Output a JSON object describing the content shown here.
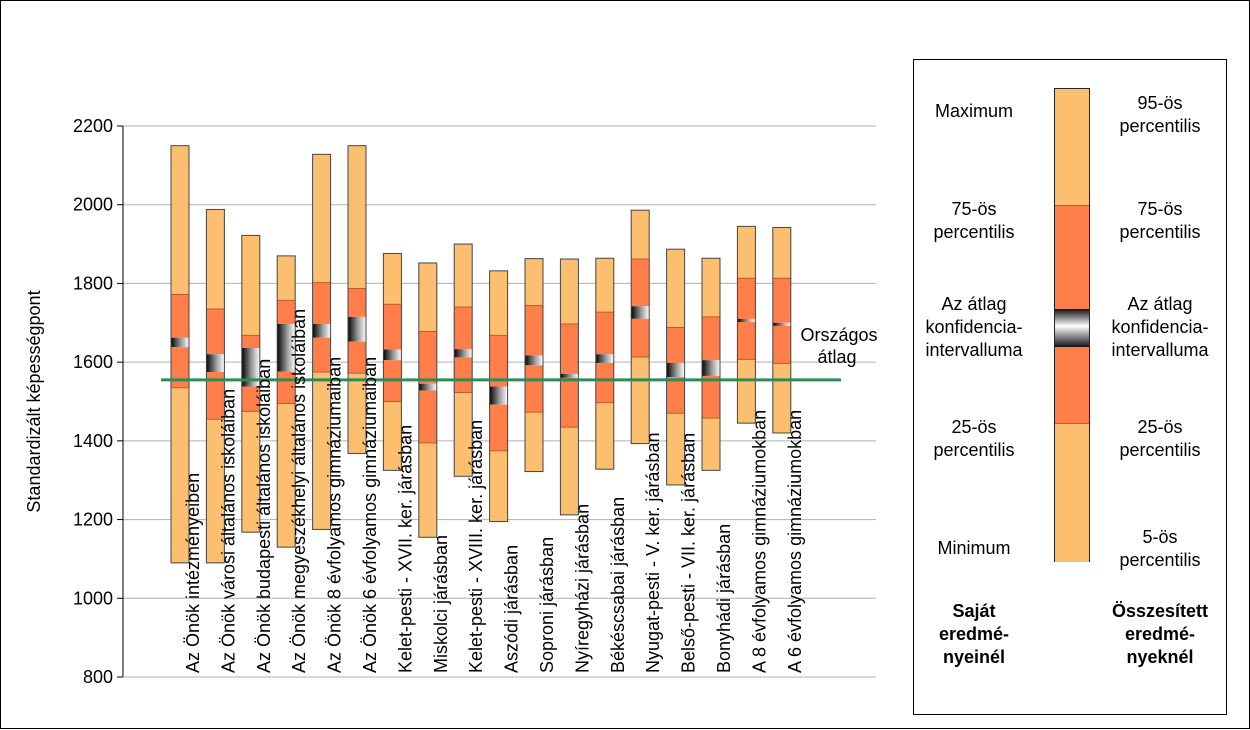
{
  "chart_data": {
    "type": "box-percentile",
    "ylabel": "Standardizált képességpont",
    "ylim": [
      800,
      2200
    ],
    "yticks": [
      800,
      1000,
      1200,
      1400,
      1600,
      1800,
      2000,
      2200
    ],
    "reference_line": {
      "label": "Országos átlag",
      "value": 1555,
      "color": "#2e8b57"
    },
    "colors": {
      "outer": "#FBBF6F",
      "inner": "#FF7E4A",
      "border": "#444444"
    },
    "categories": [
      {
        "label": "Az Önök intézményeiben",
        "min": 1090,
        "p25": 1535,
        "p75": 1772,
        "max": 2150,
        "ci_low": 1638,
        "ci_high": 1662
      },
      {
        "label": "Az Önök városi általános iskoláiban",
        "min": 1090,
        "p25": 1455,
        "p75": 1735,
        "max": 1988,
        "ci_low": 1575,
        "ci_high": 1620
      },
      {
        "label": "Az Önök budapesti általános iskoláiban",
        "min": 1168,
        "p25": 1475,
        "p75": 1668,
        "max": 1922,
        "ci_low": 1538,
        "ci_high": 1636
      },
      {
        "label": "Az Önök megyeszékhelyi általános iskoláiban",
        "min": 1130,
        "p25": 1495,
        "p75": 1757,
        "max": 1870,
        "ci_low": 1576,
        "ci_high": 1697
      },
      {
        "label": "Az Önök 8 évfolyamos gimnáziumaiban",
        "min": 1175,
        "p25": 1575,
        "p75": 1802,
        "max": 2128,
        "ci_low": 1662,
        "ci_high": 1697
      },
      {
        "label": "Az Önök 6 évfolyamos gimnáziumaiban",
        "min": 1368,
        "p25": 1572,
        "p75": 1787,
        "max": 2150,
        "ci_low": 1652,
        "ci_high": 1715
      },
      {
        "label": "Kelet-pesti - XVII. ker. járásban",
        "min": 1325,
        "p25": 1500,
        "p75": 1747,
        "max": 1876,
        "ci_low": 1605,
        "ci_high": 1632
      },
      {
        "label": "Miskolci járásban",
        "min": 1155,
        "p25": 1395,
        "p75": 1678,
        "max": 1852,
        "ci_low": 1528,
        "ci_high": 1545
      },
      {
        "label": "Kelet-pesti - XVIII. ker. járásban",
        "min": 1310,
        "p25": 1523,
        "p75": 1740,
        "max": 1900,
        "ci_low": 1612,
        "ci_high": 1633
      },
      {
        "label": "Aszódi járásban",
        "min": 1195,
        "p25": 1375,
        "p75": 1668,
        "max": 1832,
        "ci_low": 1492,
        "ci_high": 1538
      },
      {
        "label": "Soproni járásban",
        "min": 1322,
        "p25": 1473,
        "p75": 1744,
        "max": 1863,
        "ci_low": 1592,
        "ci_high": 1617
      },
      {
        "label": "Nyíregyházi járásban",
        "min": 1212,
        "p25": 1435,
        "p75": 1697,
        "max": 1862,
        "ci_low": 1560,
        "ci_high": 1570
      },
      {
        "label": "Békéscsabai járásban",
        "min": 1328,
        "p25": 1497,
        "p75": 1727,
        "max": 1864,
        "ci_low": 1598,
        "ci_high": 1620
      },
      {
        "label": "Nyugat-pesti - V. ker. járásban",
        "min": 1393,
        "p25": 1613,
        "p75": 1862,
        "max": 1986,
        "ci_low": 1710,
        "ci_high": 1742
      },
      {
        "label": "Belső-pesti - VII. ker. járásban",
        "min": 1288,
        "p25": 1470,
        "p75": 1688,
        "max": 1887,
        "ci_low": 1562,
        "ci_high": 1598
      },
      {
        "label": "Bonyhádi járásban",
        "min": 1325,
        "p25": 1458,
        "p75": 1715,
        "max": 1864,
        "ci_low": 1565,
        "ci_high": 1605
      },
      {
        "label": "A 8 évfolyamos gimnáziumokban",
        "min": 1445,
        "p25": 1607,
        "p75": 1813,
        "max": 1945,
        "ci_low": 1702,
        "ci_high": 1710
      },
      {
        "label": "A 6 évfolyamos gimnáziumokban",
        "min": 1420,
        "p25": 1597,
        "p75": 1813,
        "max": 1942,
        "ci_low": 1692,
        "ci_high": 1700
      }
    ]
  },
  "legend": {
    "maximum": "Maximum",
    "p75_left": [
      "75-ös",
      "percentilis"
    ],
    "ci_left": [
      "Az átlag",
      "konfidencia-",
      "intervalluma"
    ],
    "p25_left": [
      "25-ös",
      "percentilis"
    ],
    "minimum": "Minimum",
    "p95_right": [
      "95-ös",
      "percentilis"
    ],
    "p75_right": [
      "75-ös",
      "percentilis"
    ],
    "ci_right": [
      "Az átlag",
      "konfidencia-",
      "intervalluma"
    ],
    "p25_right": [
      "25-ös",
      "percentilis"
    ],
    "p5_right": [
      "5-ös",
      "percentilis"
    ],
    "own_results": [
      "Saját",
      "eredmé-",
      "nyeinél"
    ],
    "aggregate_results": [
      "Összesített",
      "eredmé-",
      "nyeknél"
    ]
  }
}
